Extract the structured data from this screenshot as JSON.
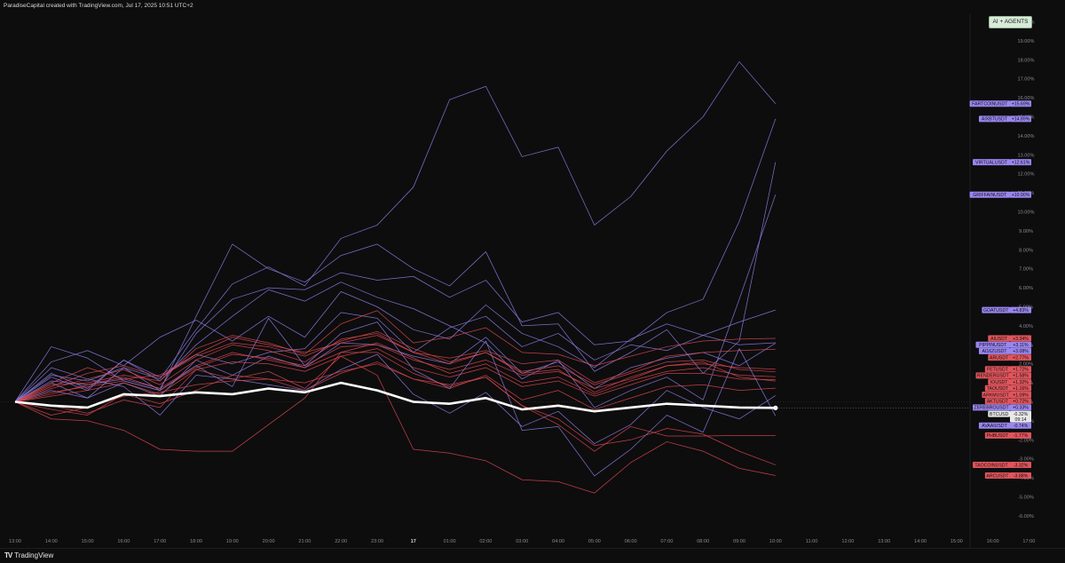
{
  "header": {
    "credit": "ParadiseCapital created with TradingView.com, Jul 17, 2025 10:51 UTC+2"
  },
  "footer": {
    "logo_text": "TradingView",
    "logo_icon": "tradingview-logo-icon"
  },
  "badge": {
    "label": "AI + AGENTS"
  },
  "colors": {
    "background": "#0d0d0e",
    "purple": "#8f7fe6",
    "red": "#e2494f",
    "white": "#ffffff",
    "purple_label": "#9a86f0",
    "red_label": "#e0555c"
  },
  "chart_data": {
    "type": "line",
    "x_ticks": [
      "13:00",
      "14:00",
      "15:00",
      "16:00",
      "17:00",
      "18:00",
      "19:00",
      "20:00",
      "21:00",
      "22:00",
      "23:00",
      "17",
      "01:00",
      "02:00",
      "03:00",
      "04:00",
      "05:00",
      "06:00",
      "07:00",
      "08:00",
      "09:00",
      "10:00",
      "11:00",
      "12:00",
      "13:00",
      "14:00",
      "15:00",
      "16:00",
      "17:00"
    ],
    "y_ticks": [
      "20.00%",
      "19.00%",
      "18.00%",
      "17.00%",
      "16.00%",
      "15.00%",
      "14.00%",
      "13.00%",
      "12.00%",
      "11.00%",
      "10.00%",
      "9.00%",
      "8.00%",
      "7.00%",
      "6.00%",
      "5.00%",
      "4.00%",
      "3.00%",
      "2.00%",
      "1.00%",
      "0.00%",
      "-1.00%",
      "-2.00%",
      "-3.00%",
      "-4.00%",
      "-5.00%",
      "-6.00%"
    ],
    "ylim": [
      -7.4,
      20.6
    ],
    "series": [
      {
        "name": "FARTCOINUSDT",
        "label": "+15.69%",
        "group": "purple",
        "values": [
          0,
          1.4,
          1.1,
          1.8,
          1.2,
          3.8,
          6.2,
          7.1,
          6.1,
          8.6,
          9.3,
          11.3,
          15.9,
          16.6,
          12.9,
          13.4,
          9.3,
          10.8,
          13.2,
          15.0,
          17.9,
          15.69
        ]
      },
      {
        "name": "AIXBTUSDT",
        "label": "+14.89%",
        "group": "purple",
        "values": [
          0,
          1.1,
          0.9,
          1.2,
          0.7,
          3.6,
          5.4,
          6.0,
          5.9,
          6.8,
          6.4,
          6.6,
          5.5,
          6.4,
          4.2,
          4.7,
          3.0,
          3.2,
          4.7,
          5.4,
          9.5,
          14.89
        ]
      },
      {
        "name": "VIRTUALUSDT",
        "label": "+12.61%",
        "group": "purple",
        "values": [
          0,
          1.0,
          0.2,
          1.8,
          0.6,
          4.5,
          8.3,
          7.0,
          6.3,
          7.7,
          8.3,
          7.0,
          6.1,
          7.9,
          4.0,
          4.1,
          1.6,
          2.6,
          3.8,
          1.5,
          3.2,
          12.61
        ]
      },
      {
        "name": "GRIFFAINUSDT",
        "label": "+10.90%",
        "group": "purple",
        "values": [
          0,
          1.5,
          0.7,
          2.2,
          1.1,
          3.0,
          4.5,
          5.9,
          5.3,
          6.3,
          5.5,
          4.9,
          4.0,
          3.1,
          1.2,
          2.2,
          -0.3,
          0.6,
          1.3,
          0.1,
          5.4,
          10.9
        ]
      },
      {
        "name": "GOATUSDT",
        "label": "+4.83%",
        "group": "purple",
        "values": [
          0,
          2.1,
          2.7,
          1.9,
          3.4,
          4.3,
          3.2,
          4.5,
          3.4,
          5.8,
          5.0,
          3.8,
          3.3,
          5.1,
          3.6,
          2.9,
          1.8,
          3.3,
          4.1,
          3.5,
          4.2,
          4.83
        ]
      },
      {
        "name": "PIPPINUSDT",
        "label": "+3.11%",
        "group": "purple",
        "values": [
          0,
          1.3,
          0.6,
          2.2,
          1.3,
          2.5,
          2.0,
          2.6,
          2.8,
          4.7,
          4.4,
          2.6,
          3.9,
          4.5,
          2.9,
          3.6,
          2.2,
          3.0,
          2.7,
          3.5,
          3.0,
          3.11
        ]
      },
      {
        "name": "AI16ZUSDT",
        "label": "+3.08%",
        "group": "purple",
        "values": [
          0,
          0.6,
          0.2,
          1.0,
          0.3,
          2.2,
          1.4,
          2.4,
          1.8,
          3.1,
          3.0,
          2.4,
          2.0,
          3.4,
          1.5,
          2.1,
          0.7,
          1.8,
          2.3,
          2.6,
          1.9,
          3.08
        ]
      },
      {
        "name": "AIUSDT",
        "label": "+3.34%",
        "group": "red",
        "values": [
          0,
          0.9,
          1.0,
          1.4,
          1.1,
          2.8,
          3.5,
          3.1,
          2.5,
          4.1,
          4.8,
          3.1,
          3.4,
          3.9,
          2.6,
          2.5,
          1.9,
          2.4,
          2.9,
          3.2,
          3.3,
          3.34
        ]
      },
      {
        "name": "ARUSDT",
        "label": "+2.77%",
        "group": "red",
        "values": [
          0,
          1.0,
          1.8,
          1.2,
          1.4,
          2.5,
          3.4,
          3.0,
          2.6,
          3.1,
          3.5,
          2.6,
          2.3,
          2.7,
          2.0,
          2.2,
          1.0,
          1.6,
          2.4,
          2.6,
          2.7,
          2.77
        ]
      },
      {
        "name": "FETUSDT",
        "label": "+1.72%",
        "group": "red",
        "values": [
          0,
          0.5,
          0.8,
          1.1,
          0.6,
          1.8,
          2.5,
          2.3,
          1.9,
          2.9,
          3.0,
          2.2,
          1.7,
          2.2,
          1.4,
          1.6,
          0.7,
          1.2,
          1.9,
          2.0,
          1.8,
          1.72
        ]
      },
      {
        "name": "RENDERUSDT",
        "label": "+1.58%",
        "group": "red",
        "values": [
          0,
          0.7,
          1.2,
          1.7,
          0.9,
          2.2,
          3.0,
          2.7,
          2.1,
          3.3,
          3.6,
          2.6,
          2.0,
          2.6,
          1.6,
          1.9,
          0.9,
          1.5,
          2.1,
          2.2,
          1.7,
          1.58
        ]
      },
      {
        "name": "IOUSDT",
        "label": "+1.32%",
        "group": "red",
        "values": [
          0,
          0.4,
          0.9,
          1.3,
          0.7,
          1.9,
          2.6,
          2.2,
          1.8,
          2.6,
          3.1,
          2.3,
          1.5,
          2.0,
          1.0,
          1.3,
          0.4,
          1.1,
          1.6,
          1.8,
          1.4,
          1.32
        ]
      },
      {
        "name": "TAOUSDT",
        "label": "+1.16%",
        "group": "red",
        "values": [
          0,
          0.3,
          0.6,
          1.0,
          0.4,
          1.7,
          2.1,
          2.0,
          1.6,
          2.4,
          2.8,
          1.8,
          1.3,
          1.8,
          0.8,
          1.1,
          0.3,
          0.9,
          1.5,
          1.5,
          1.2,
          1.16
        ]
      },
      {
        "name": "ARKMUSDT",
        "label": "+1.09%",
        "group": "red",
        "values": [
          0,
          0.8,
          1.5,
          1.9,
          1.3,
          2.4,
          3.1,
          2.9,
          2.4,
          3.2,
          3.7,
          2.8,
          2.1,
          2.6,
          1.5,
          1.7,
          0.5,
          1.3,
          1.9,
          2.1,
          1.3,
          1.09
        ]
      },
      {
        "name": "AKTUSDT",
        "label": "+0.72%",
        "group": "red",
        "values": [
          0,
          -0.4,
          -0.7,
          0.4,
          -0.1,
          0.6,
          1.4,
          1.2,
          0.6,
          1.5,
          2.1,
          1.2,
          0.7,
          1.4,
          0.1,
          0.6,
          -0.4,
          0.2,
          0.8,
          0.9,
          0.6,
          0.72
        ]
      },
      {
        "name": "ZEREBROUSDT",
        "label": "+0.33%",
        "group": "purple",
        "values": [
          0,
          1.8,
          1.2,
          0.8,
          -0.7,
          1.4,
          1.2,
          0.9,
          0.6,
          1.7,
          2.5,
          0.4,
          -0.6,
          0.5,
          -1.3,
          -0.5,
          -2.2,
          -1.2,
          0.6,
          -0.3,
          -0.9,
          0.33
        ]
      },
      {
        "name": "AVAAIUSDT",
        "label": "-0.74%",
        "group": "purple",
        "values": [
          0,
          2.9,
          2.3,
          1.1,
          0.6,
          1.9,
          0.8,
          4.4,
          1.9,
          3.6,
          4.2,
          1.7,
          0.7,
          3.2,
          -1.5,
          -1.3,
          -3.9,
          -2.5,
          -0.7,
          -1.6,
          2.8,
          -0.74
        ]
      },
      {
        "name": "PHBUSDT",
        "label": "-1.77%",
        "group": "red",
        "values": [
          0,
          -0.9,
          -1.0,
          -1.5,
          -2.5,
          -2.6,
          -2.6,
          -1.2,
          0.2,
          2.6,
          2.6,
          1.5,
          0.8,
          1.3,
          -0.2,
          -1.2,
          -2.6,
          -1.3,
          -1.8,
          -1.8,
          -1.77,
          -1.77
        ]
      },
      {
        "name": "TAOCOINUSDT",
        "label": "-3.32%",
        "group": "red",
        "values": [
          0,
          -0.7,
          -0.3,
          0.3,
          0.5,
          0.9,
          1.1,
          1.2,
          1.0,
          1.6,
          2.0,
          1.2,
          0.9,
          1.3,
          -0.2,
          -0.9,
          -2.3,
          -2.0,
          -1.4,
          -1.7,
          -2.6,
          -3.32
        ]
      },
      {
        "name": "ARCUSDT",
        "label": "-3.88%",
        "group": "red",
        "values": [
          0,
          -0.2,
          -0.6,
          0.1,
          -0.3,
          1.7,
          1.2,
          1.6,
          0.7,
          2.4,
          1.4,
          -2.5,
          -2.7,
          -3.1,
          -4.1,
          -4.2,
          -4.8,
          -3.2,
          -2.1,
          -2.6,
          -3.5,
          -3.88
        ]
      },
      {
        "name": "BTCUSD",
        "label": "-0.32%",
        "sublabel": "09:14",
        "group": "white",
        "values": [
          0,
          -0.2,
          -0.3,
          0.4,
          0.3,
          0.5,
          0.4,
          0.7,
          0.5,
          1.0,
          0.6,
          0.0,
          -0.1,
          0.2,
          -0.4,
          -0.2,
          -0.5,
          -0.3,
          -0.1,
          -0.2,
          -0.3,
          -0.32
        ]
      }
    ]
  }
}
